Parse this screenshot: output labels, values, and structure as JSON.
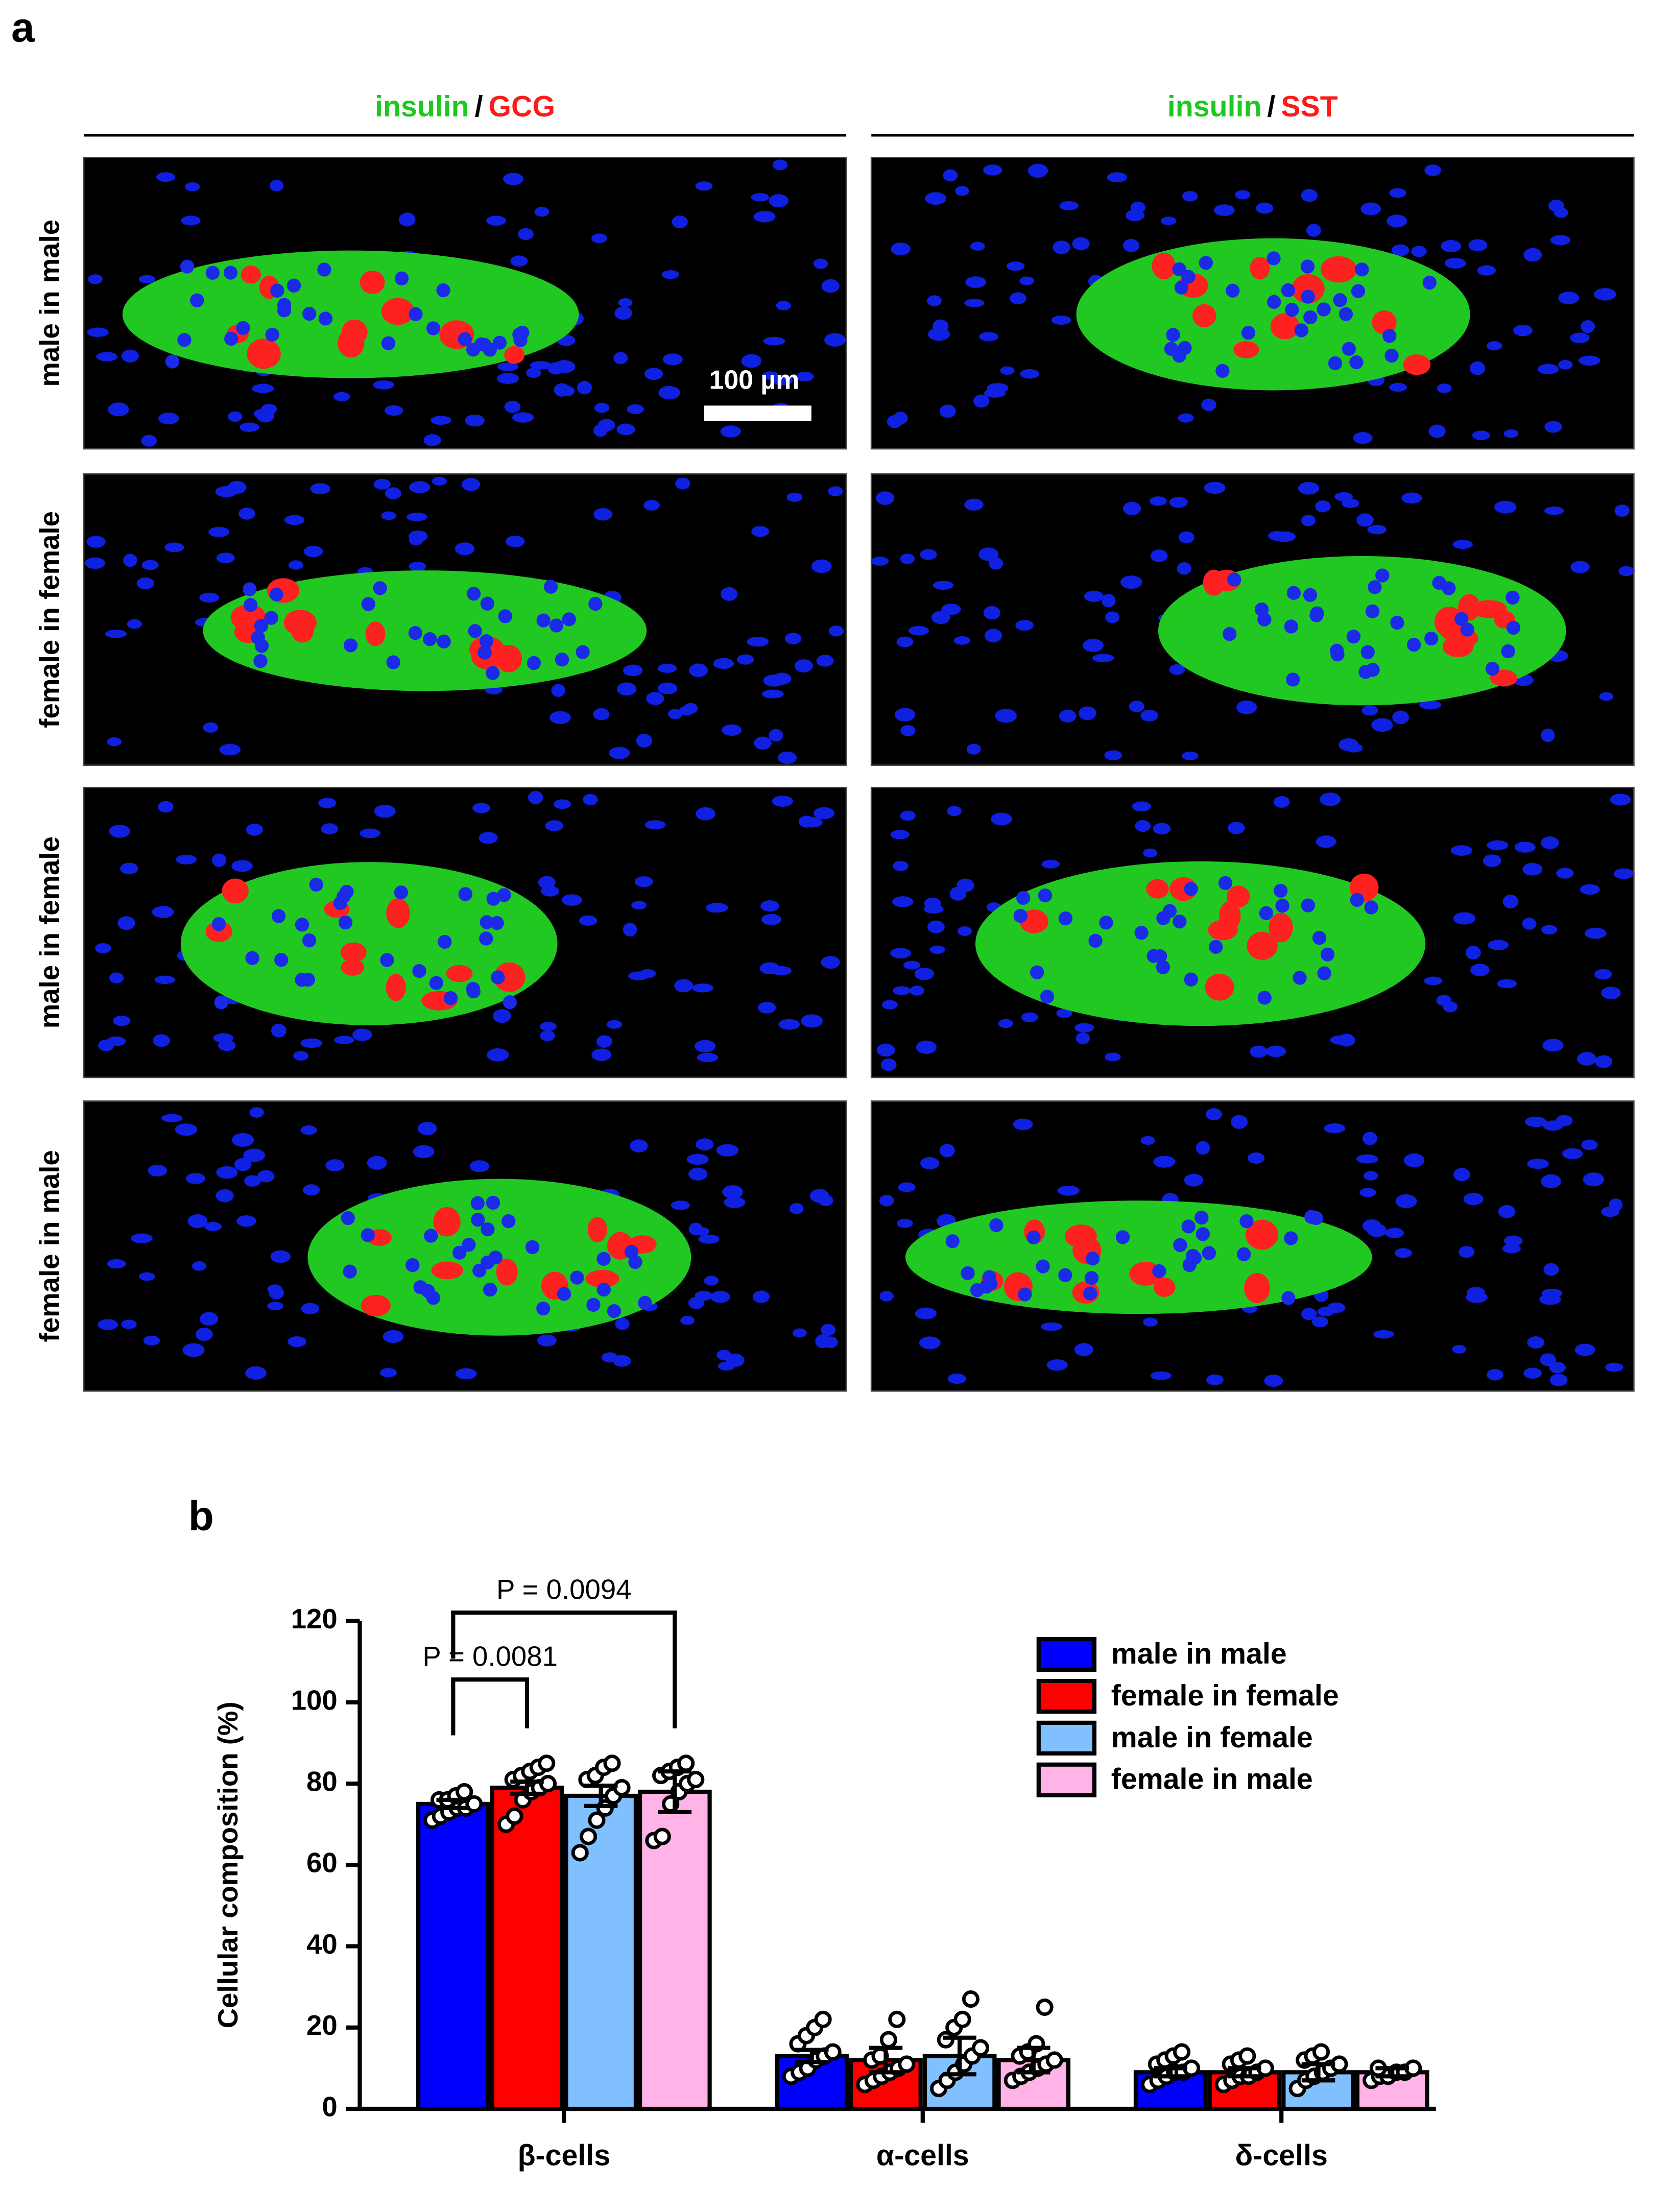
{
  "panel_a": {
    "label": "a",
    "columns": [
      {
        "stain1": "insulin",
        "sep": "/",
        "stain2": "GCG"
      },
      {
        "stain1": "insulin",
        "sep": "/",
        "stain2": "SST"
      }
    ],
    "rows": [
      "male in male",
      "female in female",
      "male in female",
      "female in male"
    ],
    "scale_bar": "100 µm"
  },
  "chart_data": {
    "type": "bar",
    "label": "b",
    "y_label": "Cellular composition (%)",
    "categories": [
      "β-cells",
      "α-cells",
      "δ-cells"
    ],
    "ylim": [
      0,
      120
    ],
    "yticks": [
      0,
      20,
      40,
      60,
      80,
      100,
      120
    ],
    "legend": "top-right",
    "annotations": [
      "P = 0.0081",
      "P = 0.0094"
    ],
    "series": [
      {
        "name": "male in male",
        "color": "#0000ff",
        "values": [
          75,
          13,
          9
        ],
        "errors": [
          1,
          1.5,
          1
        ],
        "points": [
          [
            71,
            72,
            73,
            74,
            74,
            75,
            76,
            76,
            77,
            78
          ],
          [
            8,
            9,
            10,
            12,
            13,
            14,
            16,
            18,
            20,
            22
          ],
          [
            6,
            7,
            8,
            9,
            9,
            10,
            11,
            12,
            13,
            14
          ]
        ]
      },
      {
        "name": "female in female",
        "color": "#ff0000",
        "values": [
          79,
          12,
          9
        ],
        "errors": [
          1.5,
          3,
          1
        ],
        "points": [
          [
            70,
            72,
            76,
            78,
            79,
            80,
            81,
            82,
            83,
            84,
            85
          ],
          [
            6,
            7,
            8,
            9,
            10,
            11,
            12,
            13,
            17,
            22
          ],
          [
            6,
            7,
            8,
            8,
            9,
            10,
            11,
            12,
            13
          ]
        ]
      },
      {
        "name": "male in female",
        "color": "#80c0ff",
        "values": [
          77,
          13,
          9
        ],
        "errors": [
          2.5,
          4.5,
          2
        ],
        "points": [
          [
            63,
            67,
            71,
            74,
            77,
            79,
            81,
            82,
            84,
            85
          ],
          [
            5,
            7,
            9,
            11,
            13,
            15,
            17,
            20,
            22,
            27
          ],
          [
            5,
            7,
            8,
            9,
            10,
            11,
            12,
            13,
            14
          ]
        ]
      },
      {
        "name": "female in male",
        "color": "#ffb3e6",
        "values": [
          78,
          12,
          9
        ],
        "errors": [
          5,
          3,
          1
        ],
        "points": [
          [
            66,
            67,
            75,
            78,
            80,
            81,
            82,
            83,
            84,
            85
          ],
          [
            7,
            8,
            9,
            10,
            11,
            12,
            13,
            14,
            16,
            25
          ],
          [
            7,
            8,
            8,
            9,
            9,
            10,
            10
          ]
        ]
      }
    ]
  }
}
